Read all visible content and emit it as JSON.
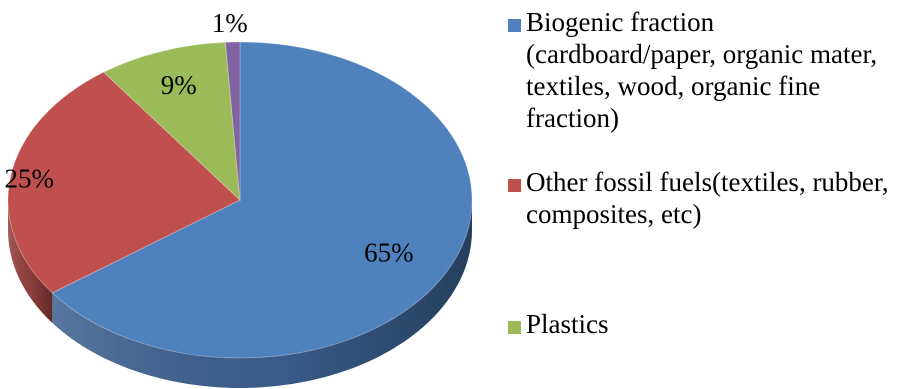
{
  "chart_data": {
    "type": "pie",
    "style": "3d",
    "slices": [
      {
        "label": "Biogenic fraction (cardboard/paper, organic mater, textiles, wood, organic fine fraction)",
        "value": 65,
        "display": "65%",
        "color": "#4F81BD",
        "side_color": "#3B6090"
      },
      {
        "label": "Other fossil fuels(textiles, rubber, composites, etc)",
        "value": 25,
        "display": "25%",
        "color": "#C0504D",
        "side_color": "#93403E"
      },
      {
        "label": "Plastics",
        "value": 9,
        "display": "9%",
        "color": "#9BBB59",
        "side_color": "#748D42"
      },
      {
        "label": "",
        "value": 1,
        "display": "1%",
        "color": "#8064A2",
        "side_color": "#5F4A79"
      }
    ],
    "legend": {
      "position": "right",
      "entries": [
        {
          "label": "Biogenic fraction (cardboard/paper, organic mater, textiles, wood, organic fine fraction)",
          "color": "#4F81BD"
        },
        {
          "label": "Other fossil fuels(textiles, rubber, composites, etc)",
          "color": "#C0504D"
        },
        {
          "label": "Plastics",
          "color": "#9BBB59"
        }
      ]
    }
  }
}
